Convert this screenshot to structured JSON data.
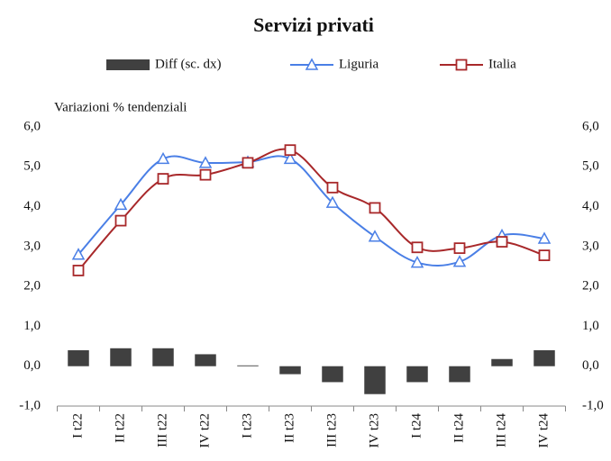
{
  "chart_data": {
    "type": "bar-line",
    "title": "Servizi privati",
    "y_label": "Variazioni % tendenziali",
    "categories": [
      "I t22",
      "II t22",
      "III t22",
      "IV t22",
      "I t23",
      "II t23",
      "III t23",
      "IV t23",
      "I t24",
      "II t24",
      "III t24",
      "IV t24"
    ],
    "series": [
      {
        "name": "Diff (sc. dx)",
        "type": "bar",
        "axis": "y2",
        "color": "#404040",
        "values": [
          0.4,
          0.45,
          0.45,
          0.3,
          0.02,
          -0.2,
          -0.4,
          -0.7,
          -0.4,
          -0.4,
          0.18,
          0.4
        ]
      },
      {
        "name": "Liguria",
        "type": "line",
        "marker": "triangle",
        "color": "#4a7fe6",
        "values": [
          2.8,
          4.05,
          5.2,
          5.1,
          5.12,
          5.2,
          4.1,
          3.25,
          2.6,
          2.62,
          3.28,
          3.2
        ]
      },
      {
        "name": "Italia",
        "type": "line",
        "marker": "square",
        "color": "#a8282a",
        "values": [
          2.4,
          3.65,
          4.7,
          4.8,
          5.1,
          5.42,
          4.48,
          3.97,
          2.98,
          2.96,
          3.12,
          2.78
        ]
      }
    ],
    "ylim": [
      -1,
      6
    ],
    "yticks": [
      {
        "value": -1,
        "label": "-1,0"
      },
      {
        "value": 0,
        "label": "0,0"
      },
      {
        "value": 1,
        "label": "1,0"
      },
      {
        "value": 2,
        "label": "2,0"
      },
      {
        "value": 3,
        "label": "3,0"
      },
      {
        "value": 4,
        "label": "4,0"
      },
      {
        "value": 5,
        "label": "5,0"
      },
      {
        "value": 6,
        "label": "6,0"
      }
    ],
    "y2lim": [
      -1,
      6
    ],
    "y2ticks": [
      {
        "value": -1,
        "label": "-1,0"
      },
      {
        "value": 0,
        "label": "0,0"
      },
      {
        "value": 1,
        "label": "1,0"
      },
      {
        "value": 2,
        "label": "2,0"
      },
      {
        "value": 3,
        "label": "3,0"
      },
      {
        "value": 4,
        "label": "4,0"
      },
      {
        "value": 5,
        "label": "5,0"
      },
      {
        "value": 6,
        "label": "6,0"
      }
    ],
    "legend": "top"
  }
}
